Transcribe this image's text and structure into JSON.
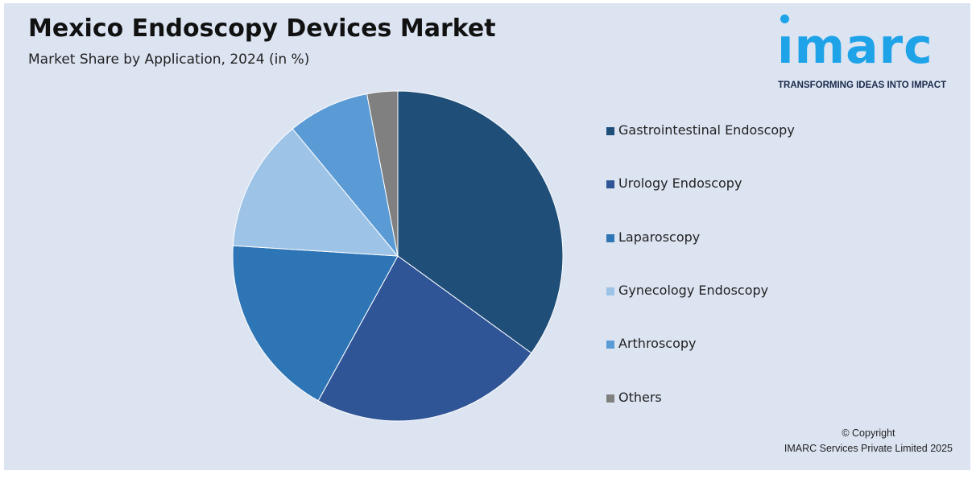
{
  "header": {
    "title": "Mexico Endoscopy Devices Market",
    "subtitle": "Market Share by Application, 2024 (in %)"
  },
  "logo": {
    "word": "ımarc",
    "tagline": "TRANSFORMING IDEAS INTO IMPACT",
    "color": "#1fa3e8"
  },
  "footer": {
    "copyright_line1": "© Copyright",
    "copyright_line2": "IMARC Services Private Limited 2025"
  },
  "chart_data": {
    "type": "pie",
    "title": "Mexico Endoscopy Devices Market",
    "subtitle": "Market Share by Application, 2024 (in %)",
    "legend_position": "right",
    "slices": [
      {
        "label": "Gastrointestinal Endoscopy",
        "value": 35,
        "color": "#1f4e79"
      },
      {
        "label": "Urology Endoscopy",
        "value": 23,
        "color": "#2f5597"
      },
      {
        "label": "Laparoscopy",
        "value": 18,
        "color": "#2e75b6"
      },
      {
        "label": "Gynecology Endoscopy",
        "value": 13,
        "color": "#9dc3e6"
      },
      {
        "label": "Arthroscopy",
        "value": 8,
        "color": "#5b9bd5"
      },
      {
        "label": "Others",
        "value": 3,
        "color": "#808080"
      }
    ]
  }
}
